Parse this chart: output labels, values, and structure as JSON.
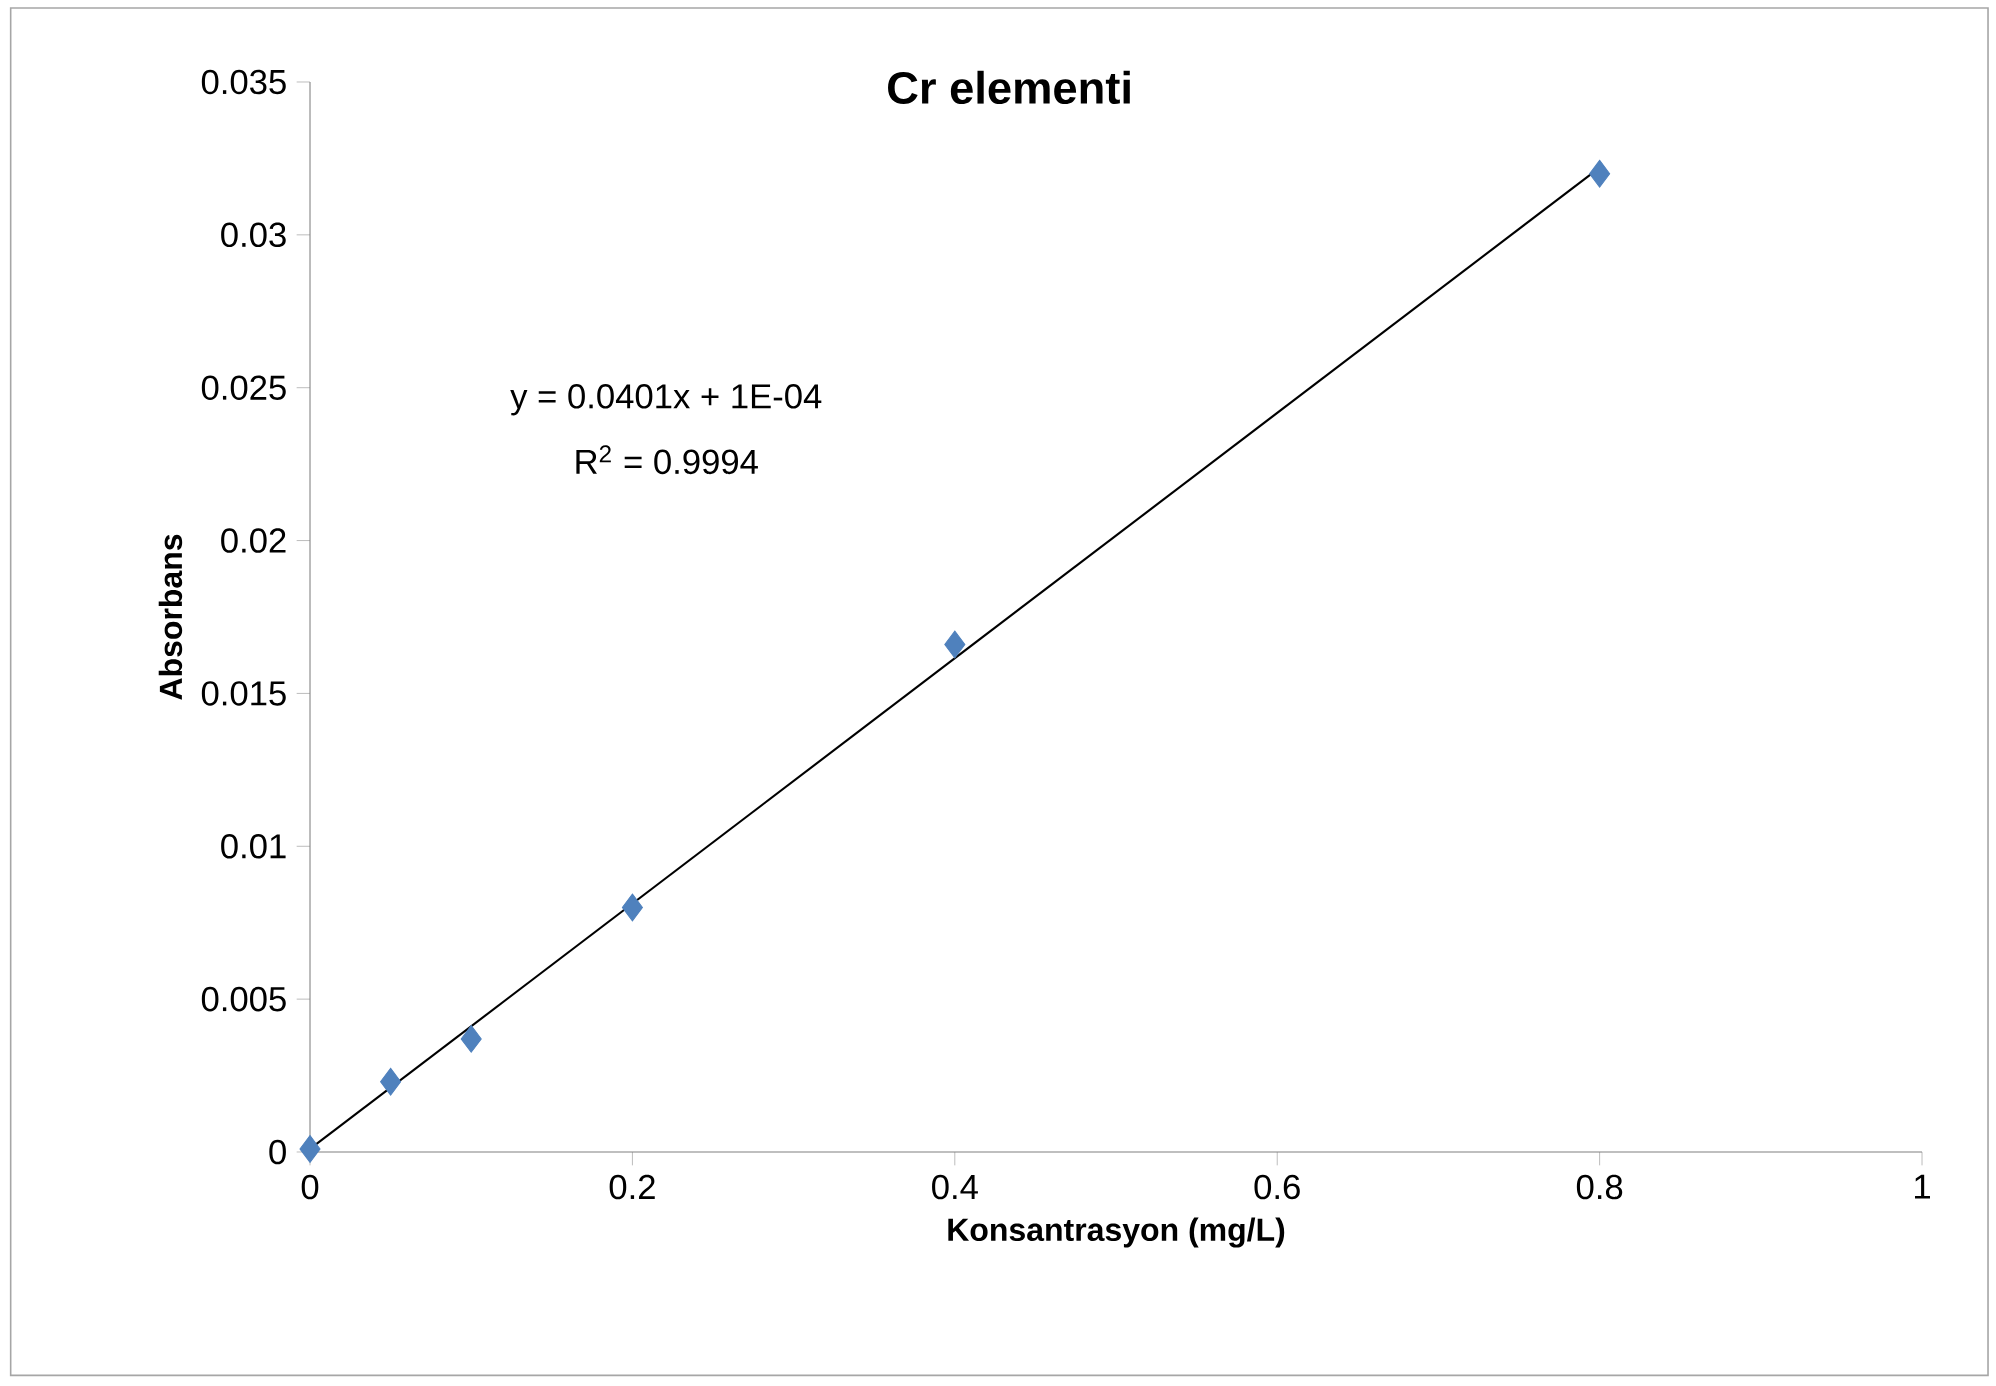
{
  "chart_data": {
    "type": "scatter",
    "title": "Cr elementi",
    "xlabel": "Konsantrasyon (mg/L)",
    "ylabel": "Absorbans",
    "annotations": [
      "y = 0.0401x + 1E-04",
      "R$^{2}$ = 0.9994"
    ],
    "series": [
      {
        "x": [
          0,
          0.05,
          0.1,
          0.2,
          0.4,
          0.8
        ],
        "values": [
          0.0001,
          0.0023,
          0.0037,
          0.008,
          0.0166,
          0.032
        ],
        "color": "#4f81bd",
        "marker": "diamond"
      },
      {
        "type": "line",
        "x": [
          0,
          0.8
        ],
        "values": [
          0.0001,
          0.0322
        ],
        "color": "#000000",
        "line_style": "solid"
      }
    ],
    "xlim": [
      0,
      1
    ],
    "ylim": [
      0,
      0.035
    ],
    "xticks": [
      0,
      0.2,
      0.4,
      0.6,
      0.8,
      1
    ],
    "yticks": [
      0,
      0.005,
      0.01,
      0.015,
      0.02,
      0.025,
      0.03,
      0.035
    ],
    "grid": false
  }
}
